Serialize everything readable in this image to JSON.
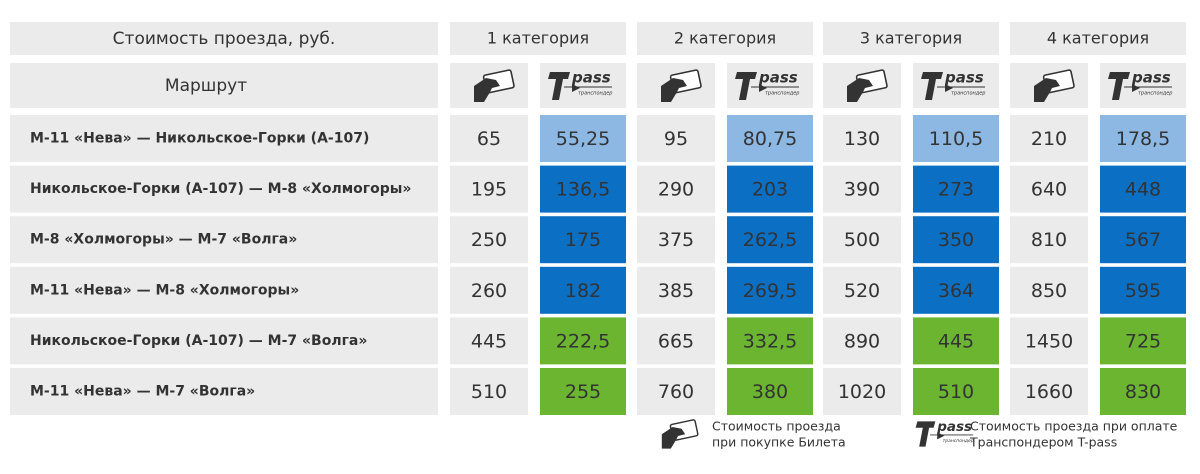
{
  "header": {
    "title": "Стоимость проезда, руб.",
    "route_label": "Маршрут",
    "categories": [
      "1 категория",
      "2 категория",
      "3 категория",
      "4 категория"
    ]
  },
  "logo": {
    "word": "pass",
    "sub": "транспондер"
  },
  "table": {
    "rows": [
      {
        "route": "М-11 «Нева» — Никольское-Горки (А-107)",
        "color": "#8db8e4",
        "values": [
          "65",
          "55,25",
          "95",
          "80,75",
          "130",
          "110,5",
          "210",
          "178,5"
        ]
      },
      {
        "route": "Никольское-Горки (А-107) — М-8 «Холмогоры»",
        "color": "#0b6fc3",
        "values": [
          "195",
          "136,5",
          "290",
          "203",
          "390",
          "273",
          "640",
          "448"
        ]
      },
      {
        "route": "М-8 «Холмогоры» — М-7 «Волга»",
        "color": "#0b6fc3",
        "values": [
          "250",
          "175",
          "375",
          "262,5",
          "500",
          "350",
          "810",
          "567"
        ]
      },
      {
        "route": "М-11 «Нева» — М-8 «Холмогоры»",
        "color": "#0b6fc3",
        "values": [
          "260",
          "182",
          "385",
          "269,5",
          "520",
          "364",
          "850",
          "595"
        ]
      },
      {
        "route": "Никольское-Горки (А-107) — М-7 «Волга»",
        "color": "#6bb531",
        "values": [
          "445",
          "222,5",
          "665",
          "332,5",
          "890",
          "445",
          "1450",
          "725"
        ]
      },
      {
        "route": "М-11 «Нева» — М-7 «Волга»",
        "color": "#6bb531",
        "values": [
          "510",
          "255",
          "760",
          "380",
          "1020",
          "510",
          "1660",
          "830"
        ]
      }
    ]
  },
  "legend": [
    {
      "lines": [
        "Стоимость проезда",
        "при покупке Билета"
      ]
    },
    {
      "lines": [
        "Стоимость проезда при оплате",
        "Транспондером T-pass"
      ]
    }
  ]
}
